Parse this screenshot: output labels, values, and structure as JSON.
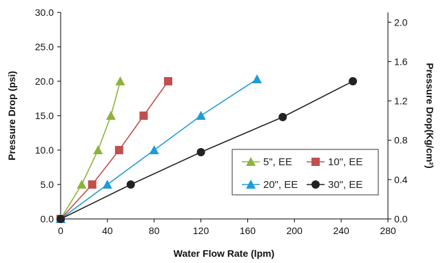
{
  "chart_data": {
    "type": "line",
    "xlabel": "Water Flow Rate (lpm)",
    "ylabel_left": "Pressure Drop  (psi)",
    "ylabel_right": "Pressure Drop(Kg/cm²)",
    "xlim": [
      0,
      280
    ],
    "ylim_left": [
      0,
      30
    ],
    "ylim_right": [
      0,
      2.1
    ],
    "x_ticks": [
      "0",
      "40",
      "80",
      "120",
      "160",
      "200",
      "240",
      "280"
    ],
    "y_left_ticks": [
      "0.0",
      "5.0",
      "10.0",
      "15.0",
      "20.0",
      "25.0",
      "30.0"
    ],
    "y_right_ticks": [
      "0.0",
      "0.4",
      "0.8",
      "1.2",
      "1.6",
      "2.0"
    ],
    "grid": false,
    "legend_position": "bottom-right",
    "series": [
      {
        "name": "5\", EE",
        "color": "#8db33f",
        "marker": "triangle",
        "x": [
          0,
          18,
          32,
          43,
          51
        ],
        "y": [
          0,
          5,
          10,
          15,
          20
        ]
      },
      {
        "name": "10\", EE",
        "color": "#c0504d",
        "marker": "square",
        "x": [
          0,
          27,
          50,
          71,
          92
        ],
        "y": [
          0,
          5,
          10,
          15,
          20
        ]
      },
      {
        "name": "20\", EE",
        "color": "#1f9bd7",
        "marker": "triangle",
        "x": [
          0,
          40,
          80,
          120,
          168
        ],
        "y": [
          0,
          5,
          10,
          15,
          20.3
        ]
      },
      {
        "name": "30\", EE",
        "color": "#222222",
        "marker": "circle",
        "x": [
          0,
          60,
          120,
          190,
          250
        ],
        "y": [
          0,
          5,
          9.7,
          14.8,
          20
        ]
      }
    ]
  }
}
